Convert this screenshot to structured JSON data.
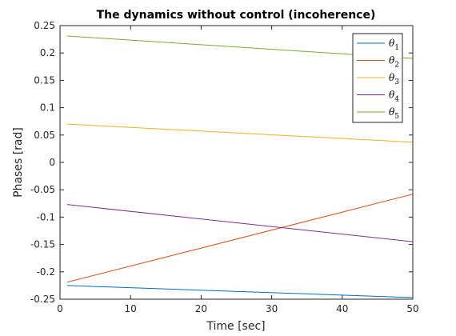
{
  "chart_data": {
    "type": "line",
    "title": "The dynamics without control (incoherence)",
    "xlabel": "Time [sec]",
    "ylabel": "Phases [rad]",
    "xlim": [
      0,
      50
    ],
    "ylim": [
      -0.25,
      0.25
    ],
    "xticks": [
      0,
      10,
      20,
      30,
      40,
      50
    ],
    "yticks": [
      -0.25,
      -0.2,
      -0.15,
      -0.1,
      -0.05,
      0,
      0.05,
      0.1,
      0.15,
      0.2,
      0.25
    ],
    "grid": false,
    "legend_position": "top-right",
    "x": [
      1,
      50
    ],
    "series": [
      {
        "name": "θ",
        "subscript": "1",
        "color": "#0072BD",
        "values": [
          -0.225,
          -0.247
        ]
      },
      {
        "name": "θ",
        "subscript": "2",
        "color": "#D95319",
        "values": [
          -0.219,
          -0.058
        ]
      },
      {
        "name": "θ",
        "subscript": "3",
        "color": "#EDB120",
        "values": [
          0.07,
          0.037
        ]
      },
      {
        "name": "θ",
        "subscript": "4",
        "color": "#7E2F8E",
        "values": [
          -0.077,
          -0.145
        ]
      },
      {
        "name": "θ",
        "subscript": "5",
        "color": "#77AC30",
        "values": [
          0.231,
          0.19
        ]
      }
    ]
  }
}
